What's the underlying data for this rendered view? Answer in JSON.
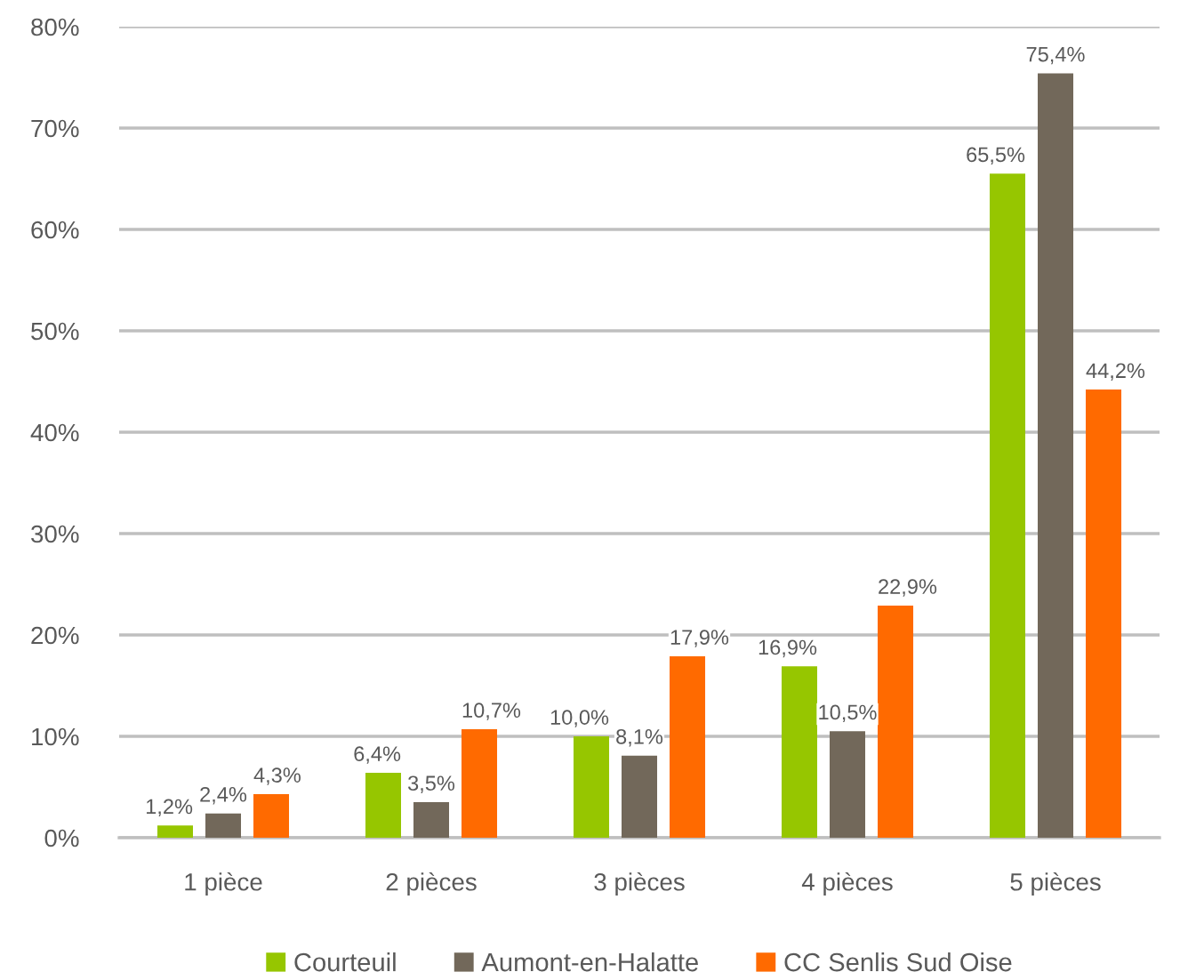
{
  "chart_data": {
    "type": "bar",
    "categories": [
      "1 pièce",
      "2 pièces",
      "3 pièces",
      "4 pièces",
      "5 pièces"
    ],
    "series": [
      {
        "name": "Courteuil",
        "color": "#96c600",
        "values": [
          1.2,
          6.4,
          10.0,
          16.9,
          65.5
        ],
        "value_labels": [
          "1,2%",
          "6,4%",
          "10,0%",
          "16,9%",
          "65,5%"
        ]
      },
      {
        "name": "Aumont-en-Halatte",
        "color": "#72685a",
        "values": [
          2.4,
          3.5,
          8.1,
          10.5,
          75.4
        ],
        "value_labels": [
          "2,4%",
          "3,5%",
          "8,1%",
          "10,5%",
          "75,4%"
        ]
      },
      {
        "name": "CC Senlis Sud Oise",
        "color": "#ff6a00",
        "values": [
          4.3,
          10.7,
          17.9,
          22.9,
          44.2
        ],
        "value_labels": [
          "4,3%",
          "10,7%",
          "17,9%",
          "22,9%",
          "44,2%"
        ]
      }
    ],
    "ylim": [
      0,
      80
    ],
    "yticks": [
      {
        "value": 0,
        "label": "0%"
      },
      {
        "value": 10,
        "label": "10%"
      },
      {
        "value": 20,
        "label": "20%"
      },
      {
        "value": 30,
        "label": "30%"
      },
      {
        "value": 40,
        "label": "40%"
      },
      {
        "value": 50,
        "label": "50%"
      },
      {
        "value": 60,
        "label": "60%"
      },
      {
        "value": 70,
        "label": "70%"
      },
      {
        "value": 80,
        "label": "80%"
      }
    ],
    "grid": "y",
    "legend": "bottom"
  }
}
